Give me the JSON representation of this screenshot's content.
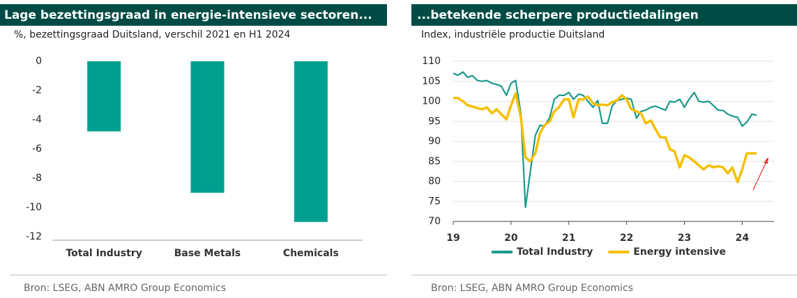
{
  "chart_data": [
    {
      "type": "bar",
      "title": "Lage bezettingsgraad in energie-intensieve sectoren...",
      "subtitle": "%, bezettingsgraad Duitsland, verschil 2021 en H1 2024",
      "categories": [
        "Total Industry",
        "Base Metals",
        "Chemicals"
      ],
      "values": [
        -4.8,
        -9.0,
        -11.0
      ],
      "color": "#00a091",
      "ylim": [
        -12.25,
        0
      ],
      "yticks": [
        0,
        -2,
        -4,
        -6,
        -8,
        -10,
        -12
      ],
      "grid": false,
      "source": "Bron: LSEG, ABN AMRO Group Economics"
    },
    {
      "type": "line",
      "title": "...betekende scherpere productiedalingen",
      "subtitle": "Index, industriële productie Duitsland",
      "x": [
        2019.0,
        2019.08,
        2019.17,
        2019.25,
        2019.33,
        2019.42,
        2019.5,
        2019.58,
        2019.67,
        2019.75,
        2019.83,
        2019.92,
        2020.0,
        2020.08,
        2020.17,
        2020.25,
        2020.33,
        2020.42,
        2020.5,
        2020.58,
        2020.67,
        2020.75,
        2020.83,
        2020.92,
        2021.0,
        2021.08,
        2021.17,
        2021.25,
        2021.33,
        2021.42,
        2021.5,
        2021.58,
        2021.67,
        2021.75,
        2021.83,
        2021.92,
        2022.0,
        2022.08,
        2022.17,
        2022.25,
        2022.33,
        2022.42,
        2022.5,
        2022.58,
        2022.67,
        2022.75,
        2022.83,
        2022.92,
        2023.0,
        2023.08,
        2023.17,
        2023.25,
        2023.33,
        2023.42,
        2023.5,
        2023.58,
        2023.67,
        2023.75,
        2023.83,
        2023.92,
        2024.0,
        2024.08,
        2024.17,
        2024.25
      ],
      "series": [
        {
          "name": "Total Industry",
          "color": "#1a9a8b",
          "values": [
            107,
            106.5,
            107.3,
            106,
            106.4,
            105.2,
            105,
            105.2,
            104.5,
            104.2,
            103.8,
            101.5,
            104.5,
            105.2,
            97,
            73.5,
            82,
            91.5,
            94,
            93.8,
            96,
            100.5,
            101.5,
            101.5,
            102.2,
            100.5,
            101.8,
            101.5,
            100,
            98.5,
            100.2,
            94.5,
            94.5,
            98.8,
            100.2,
            100.5,
            100.8,
            100.5,
            95.8,
            97.5,
            97.8,
            98.5,
            98.8,
            98.3,
            97.8,
            100,
            99.8,
            100.5,
            98.5,
            100.5,
            102.2,
            100,
            99.8,
            100,
            99,
            97.8,
            97.7,
            96.8,
            96.3,
            96,
            93.8,
            94.8,
            96.8,
            96.5
          ]
        },
        {
          "name": "Energy intensive",
          "color": "#f5bf00",
          "values": [
            100.8,
            100.8,
            100,
            99,
            98.7,
            98.3,
            98,
            98.5,
            97,
            98,
            96.8,
            95.5,
            99,
            102,
            96,
            86,
            85,
            87,
            92,
            94,
            95,
            97.5,
            98.5,
            100.5,
            100.5,
            96,
            100.5,
            100.5,
            101.2,
            99.5,
            99,
            99.2,
            99,
            99.8,
            100.2,
            101.5,
            100.5,
            98,
            97.5,
            97,
            94.5,
            95.2,
            93,
            91,
            91,
            88,
            87.5,
            83.5,
            86.5,
            86,
            85,
            84,
            83,
            84,
            83.5,
            83.8,
            83.5,
            82,
            83.5,
            79.8,
            83,
            87,
            87,
            87
          ]
        }
      ],
      "xlim": [
        2019,
        2024.55
      ],
      "xticks": [
        {
          "value": 2019,
          "label": "19"
        },
        {
          "value": 2020,
          "label": "20"
        },
        {
          "value": 2021,
          "label": "21"
        },
        {
          "value": 2022,
          "label": "22"
        },
        {
          "value": 2023,
          "label": "23"
        },
        {
          "value": 2024,
          "label": "24"
        }
      ],
      "ylim": [
        70,
        110
      ],
      "yticks": [
        70,
        75,
        80,
        85,
        90,
        95,
        100,
        105,
        110
      ],
      "grid": true,
      "legend": "bottom",
      "source": "Bron: LSEG, ABN AMRO Group Economics"
    }
  ]
}
